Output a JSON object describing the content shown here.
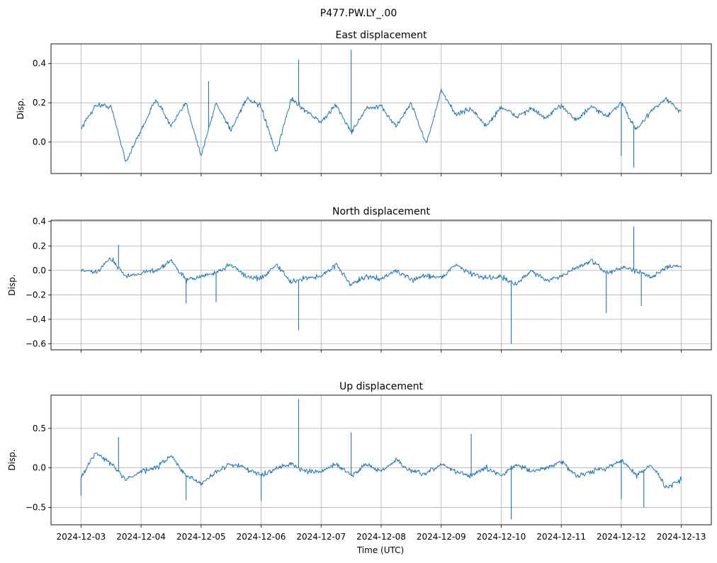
{
  "chart_data": {
    "type": "line",
    "title": "P477.PW.LY_.00",
    "xlabel": "Time (UTC)",
    "x_tick_labels": [
      "2024-12-03",
      "2024-12-04",
      "2024-12-05",
      "2024-12-06",
      "2024-12-07",
      "2024-12-08",
      "2024-12-09",
      "2024-12-10",
      "2024-12-11",
      "2024-12-12",
      "2024-12-13"
    ],
    "xlim": [
      "2024-12-03",
      "2024-12-13"
    ],
    "grid": true,
    "line_color": "#1f77b4",
    "subplots": [
      {
        "title": "East displacement",
        "ylabel": "Disp.",
        "ylim": [
          -0.16,
          0.5
        ],
        "yticks": [
          0.0,
          0.2,
          0.4
        ],
        "ytick_labels": [
          "0.0",
          "0.2",
          "0.4"
        ],
        "x": [
          "2024-12-03T00:00",
          "2024-12-03T06:00",
          "2024-12-03T12:00",
          "2024-12-03T18:00",
          "2024-12-04T00:00",
          "2024-12-04T06:00",
          "2024-12-04T12:00",
          "2024-12-04T18:00",
          "2024-12-05T00:00",
          "2024-12-05T06:00",
          "2024-12-05T12:00",
          "2024-12-05T18:00",
          "2024-12-06T00:00",
          "2024-12-06T06:00",
          "2024-12-06T12:00",
          "2024-12-06T18:00",
          "2024-12-07T00:00",
          "2024-12-07T06:00",
          "2024-12-07T12:00",
          "2024-12-07T18:00",
          "2024-12-08T00:00",
          "2024-12-08T06:00",
          "2024-12-08T12:00",
          "2024-12-08T18:00",
          "2024-12-09T00:00",
          "2024-12-09T06:00",
          "2024-12-09T12:00",
          "2024-12-09T18:00",
          "2024-12-10T00:00",
          "2024-12-10T06:00",
          "2024-12-10T12:00",
          "2024-12-10T18:00",
          "2024-12-11T00:00",
          "2024-12-11T06:00",
          "2024-12-11T12:00",
          "2024-12-11T18:00",
          "2024-12-12T00:00",
          "2024-12-12T06:00",
          "2024-12-12T12:00",
          "2024-12-12T18:00",
          "2024-12-13T00:00"
        ],
        "values": [
          0.07,
          0.19,
          0.18,
          -0.1,
          0.06,
          0.22,
          0.08,
          0.2,
          -0.07,
          0.2,
          0.06,
          0.22,
          0.18,
          -0.06,
          0.22,
          0.16,
          0.1,
          0.19,
          0.05,
          0.17,
          0.18,
          0.08,
          0.2,
          -0.01,
          0.26,
          0.14,
          0.17,
          0.08,
          0.18,
          0.13,
          0.17,
          0.12,
          0.19,
          0.11,
          0.18,
          0.13,
          0.2,
          0.06,
          0.16,
          0.22,
          0.15
        ],
        "spikes": [
          {
            "x": "2024-12-05T03:00",
            "value": 0.31
          },
          {
            "x": "2024-12-06T15:00",
            "value": 0.42
          },
          {
            "x": "2024-12-07T12:00",
            "value": 0.47
          },
          {
            "x": "2024-12-12T00:00",
            "value": -0.07
          },
          {
            "x": "2024-12-12T05:00",
            "value": -0.13
          }
        ]
      },
      {
        "title": "North displacement",
        "ylabel": "Disp.",
        "ylim": [
          -0.65,
          0.41
        ],
        "yticks": [
          -0.6,
          -0.4,
          -0.2,
          0.0,
          0.2,
          0.4
        ],
        "ytick_labels": [
          "−0.6",
          "−0.4",
          "−0.2",
          "0.0",
          "0.2",
          "0.4"
        ],
        "x": [
          "2024-12-03T00:00",
          "2024-12-03T06:00",
          "2024-12-03T12:00",
          "2024-12-03T18:00",
          "2024-12-04T00:00",
          "2024-12-04T06:00",
          "2024-12-04T12:00",
          "2024-12-04T18:00",
          "2024-12-05T00:00",
          "2024-12-05T06:00",
          "2024-12-05T12:00",
          "2024-12-05T18:00",
          "2024-12-06T00:00",
          "2024-12-06T06:00",
          "2024-12-06T12:00",
          "2024-12-06T18:00",
          "2024-12-07T00:00",
          "2024-12-07T06:00",
          "2024-12-07T12:00",
          "2024-12-07T18:00",
          "2024-12-08T00:00",
          "2024-12-08T06:00",
          "2024-12-08T12:00",
          "2024-12-08T18:00",
          "2024-12-09T00:00",
          "2024-12-09T06:00",
          "2024-12-09T12:00",
          "2024-12-09T18:00",
          "2024-12-10T00:00",
          "2024-12-10T06:00",
          "2024-12-10T12:00",
          "2024-12-10T18:00",
          "2024-12-11T00:00",
          "2024-12-11T06:00",
          "2024-12-11T12:00",
          "2024-12-11T18:00",
          "2024-12-12T00:00",
          "2024-12-12T06:00",
          "2024-12-12T12:00",
          "2024-12-12T18:00",
          "2024-12-13T00:00"
        ],
        "values": [
          0.0,
          -0.02,
          0.1,
          -0.05,
          -0.02,
          0.0,
          0.08,
          -0.08,
          -0.05,
          -0.02,
          0.05,
          -0.05,
          -0.07,
          0.05,
          -0.1,
          -0.06,
          -0.05,
          0.05,
          -0.12,
          -0.05,
          -0.07,
          0.0,
          -0.08,
          -0.04,
          -0.06,
          0.05,
          -0.03,
          -0.06,
          -0.05,
          -0.12,
          0.0,
          -0.08,
          -0.05,
          0.02,
          0.08,
          -0.02,
          0.02,
          0.0,
          -0.05,
          0.02,
          0.04
        ],
        "spikes": [
          {
            "x": "2024-12-03T15:00",
            "value": 0.21
          },
          {
            "x": "2024-12-04T18:00",
            "value": -0.27
          },
          {
            "x": "2024-12-05T06:00",
            "value": -0.26
          },
          {
            "x": "2024-12-06T15:00",
            "value": -0.49
          },
          {
            "x": "2024-12-10T04:00",
            "value": -0.6
          },
          {
            "x": "2024-12-11T18:00",
            "value": -0.35
          },
          {
            "x": "2024-12-12T05:00",
            "value": 0.36
          },
          {
            "x": "2024-12-12T08:00",
            "value": -0.29
          }
        ]
      },
      {
        "title": "Up displacement",
        "ylabel": "Disp.",
        "ylim": [
          -0.72,
          0.92
        ],
        "yticks": [
          -0.5,
          0.0,
          0.5
        ],
        "ytick_labels": [
          "−0.5",
          "0.0",
          "0.5"
        ],
        "x": [
          "2024-12-03T00:00",
          "2024-12-03T06:00",
          "2024-12-03T12:00",
          "2024-12-03T18:00",
          "2024-12-04T00:00",
          "2024-12-04T06:00",
          "2024-12-04T12:00",
          "2024-12-04T18:00",
          "2024-12-05T00:00",
          "2024-12-05T06:00",
          "2024-12-05T12:00",
          "2024-12-05T18:00",
          "2024-12-06T00:00",
          "2024-12-06T06:00",
          "2024-12-06T12:00",
          "2024-12-06T18:00",
          "2024-12-07T00:00",
          "2024-12-07T06:00",
          "2024-12-07T12:00",
          "2024-12-07T18:00",
          "2024-12-08T00:00",
          "2024-12-08T06:00",
          "2024-12-08T12:00",
          "2024-12-08T18:00",
          "2024-12-09T00:00",
          "2024-12-09T06:00",
          "2024-12-09T12:00",
          "2024-12-09T18:00",
          "2024-12-10T00:00",
          "2024-12-10T06:00",
          "2024-12-10T12:00",
          "2024-12-10T18:00",
          "2024-12-11T00:00",
          "2024-12-11T06:00",
          "2024-12-11T12:00",
          "2024-12-11T18:00",
          "2024-12-12T00:00",
          "2024-12-12T06:00",
          "2024-12-12T12:00",
          "2024-12-12T18:00",
          "2024-12-13T00:00"
        ],
        "values": [
          -0.12,
          0.2,
          0.05,
          -0.15,
          -0.05,
          0.0,
          0.15,
          -0.1,
          -0.2,
          -0.05,
          0.05,
          0.0,
          -0.1,
          0.0,
          0.05,
          -0.05,
          -0.05,
          0.05,
          -0.1,
          0.05,
          -0.05,
          0.1,
          -0.05,
          -0.08,
          0.05,
          -0.05,
          -0.1,
          0.0,
          -0.1,
          0.05,
          -0.05,
          0.0,
          0.08,
          -0.1,
          -0.05,
          0.0,
          0.1,
          -0.1,
          0.05,
          -0.25,
          -0.15
        ],
        "spikes": [
          {
            "x": "2024-12-03T00:00",
            "value": -0.35
          },
          {
            "x": "2024-12-03T15:00",
            "value": 0.39
          },
          {
            "x": "2024-12-04T18:00",
            "value": -0.41
          },
          {
            "x": "2024-12-06T00:00",
            "value": -0.42
          },
          {
            "x": "2024-12-06T15:00",
            "value": 0.87
          },
          {
            "x": "2024-12-07T12:00",
            "value": 0.45
          },
          {
            "x": "2024-12-09T12:00",
            "value": 0.43
          },
          {
            "x": "2024-12-10T04:00",
            "value": -0.65
          },
          {
            "x": "2024-12-12T00:00",
            "value": -0.4
          },
          {
            "x": "2024-12-12T09:00",
            "value": -0.5
          }
        ]
      }
    ]
  }
}
